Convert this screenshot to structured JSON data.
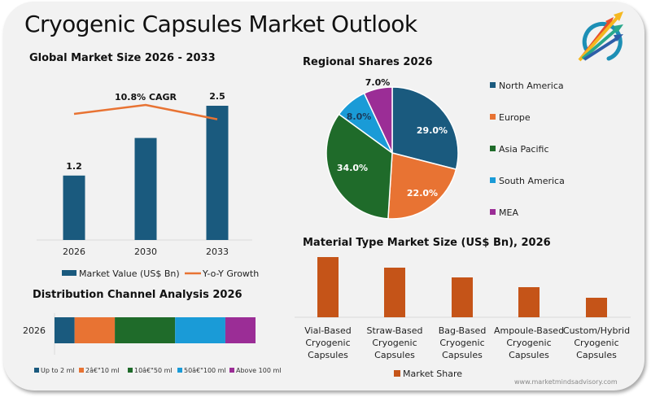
{
  "page": {
    "title": "Cryogenic Capsules Market Outlook",
    "website": "www.marketmindsadvisory.com",
    "logo_icon": "colorful-arrows-logo-icon"
  },
  "colors": {
    "navy": "#1a5a7e",
    "orange": "#e87333",
    "green": "#1f6b2a",
    "sky": "#1a9bd7",
    "purple": "#9b2d96",
    "rust": "#c55418",
    "background": "#f2f2f2"
  },
  "chart_data": [
    {
      "id": "market_size",
      "type": "bar",
      "title": "Global Market Size 2026 - 2033",
      "categories": [
        "2026",
        "2030",
        "2033"
      ],
      "series": [
        {
          "name": "Market Value (US$ Bn)",
          "type": "bar",
          "values": [
            1.2,
            1.9,
            2.5
          ],
          "data_labels": [
            "1.2",
            "",
            "2.5"
          ]
        },
        {
          "name": "Y-o-Y Growth",
          "type": "line",
          "values": [
            10.3,
            10.8,
            10.0
          ]
        }
      ],
      "annotation": "10.8% CAGR",
      "xlabel": "",
      "ylabel": "",
      "ylim": [
        0,
        2.5
      ],
      "grid": false,
      "legend": "bottom"
    },
    {
      "id": "regional_shares",
      "type": "pie",
      "title": "Regional Shares 2026",
      "categories": [
        "North America",
        "Europe",
        "Asia Pacific",
        "South America",
        "MEA"
      ],
      "values": [
        29.0,
        22.0,
        34.0,
        8.0,
        7.0
      ],
      "labels": [
        "29.0%",
        "22.0%",
        "34.0%",
        "8.0%",
        "7.0%"
      ],
      "legend": "right"
    },
    {
      "id": "distribution_channel",
      "type": "bar",
      "orientation": "horizontal-stacked",
      "title": "Distribution Channel Analysis 2026",
      "categories": [
        "2026"
      ],
      "series": [
        {
          "name": "Up to 2 ml",
          "values": [
            10
          ]
        },
        {
          "name": "2â€\"10 ml",
          "values": [
            20
          ]
        },
        {
          "name": "10â€\"50 ml",
          "values": [
            30
          ]
        },
        {
          "name": "50â€\"100 ml",
          "values": [
            25
          ]
        },
        {
          "name": "Above 100 ml",
          "values": [
            15
          ]
        }
      ],
      "legend": "bottom"
    },
    {
      "id": "material_type",
      "type": "bar",
      "title": "Material Type Market Size (US$ Bn), 2026",
      "categories": [
        [
          "Vial-Based",
          "Cryogenic",
          "Capsules"
        ],
        [
          "Straw-Based",
          "Cryogenic",
          "Capsules"
        ],
        [
          "Bag-Based",
          "Cryogenic",
          "Capsules"
        ],
        [
          "Ampoule-Based",
          "Cryogenic",
          "Capsules"
        ],
        [
          "Custom/Hybrid",
          "Cryogenic",
          "Capsules"
        ]
      ],
      "series": [
        {
          "name": "Market Share",
          "values": [
            0.74,
            0.61,
            0.49,
            0.37,
            0.24
          ]
        }
      ],
      "ylim": [
        0,
        0.8
      ],
      "legend": "bottom"
    }
  ]
}
